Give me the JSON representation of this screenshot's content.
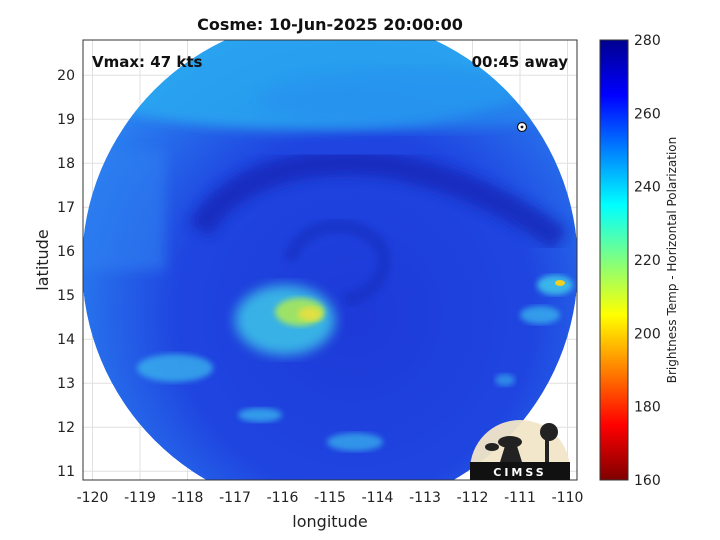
{
  "title": "Cosme: 10-Jun-2025 20:00:00",
  "vmax_label": "Vmax: 47 kts",
  "time_label": "00:45 away",
  "xlabel": "longitude",
  "ylabel": "latitude",
  "xticks": [
    "-120",
    "-119",
    "-118",
    "-117",
    "-116",
    "-115",
    "-114",
    "-113",
    "-112",
    "-111",
    "-110"
  ],
  "yticks": [
    "20",
    "19",
    "18",
    "17",
    "16",
    "15",
    "14",
    "13",
    "12",
    "11"
  ],
  "colorbar": {
    "label": "Brightness Temp - Horizontal Polarization",
    "ticks": [
      "280",
      "260",
      "240",
      "220",
      "200",
      "180",
      "160"
    ],
    "range": [
      160,
      280
    ],
    "colormap": [
      "#7f0000",
      "#ff0000",
      "#ff8000",
      "#ffff00",
      "#80ff80",
      "#00ffff",
      "#0080ff",
      "#0000ff",
      "#00008f"
    ]
  },
  "map": {
    "lon_range": [
      -120.2,
      -109.8
    ],
    "lat_range": [
      10.8,
      20.8
    ],
    "storm_center": {
      "lon": -114.8,
      "lat": 15.5
    },
    "swath_color": "#1f3ddb",
    "marker_icon": "storm-symbol-icon"
  },
  "logo": {
    "text": "CIMSS"
  }
}
